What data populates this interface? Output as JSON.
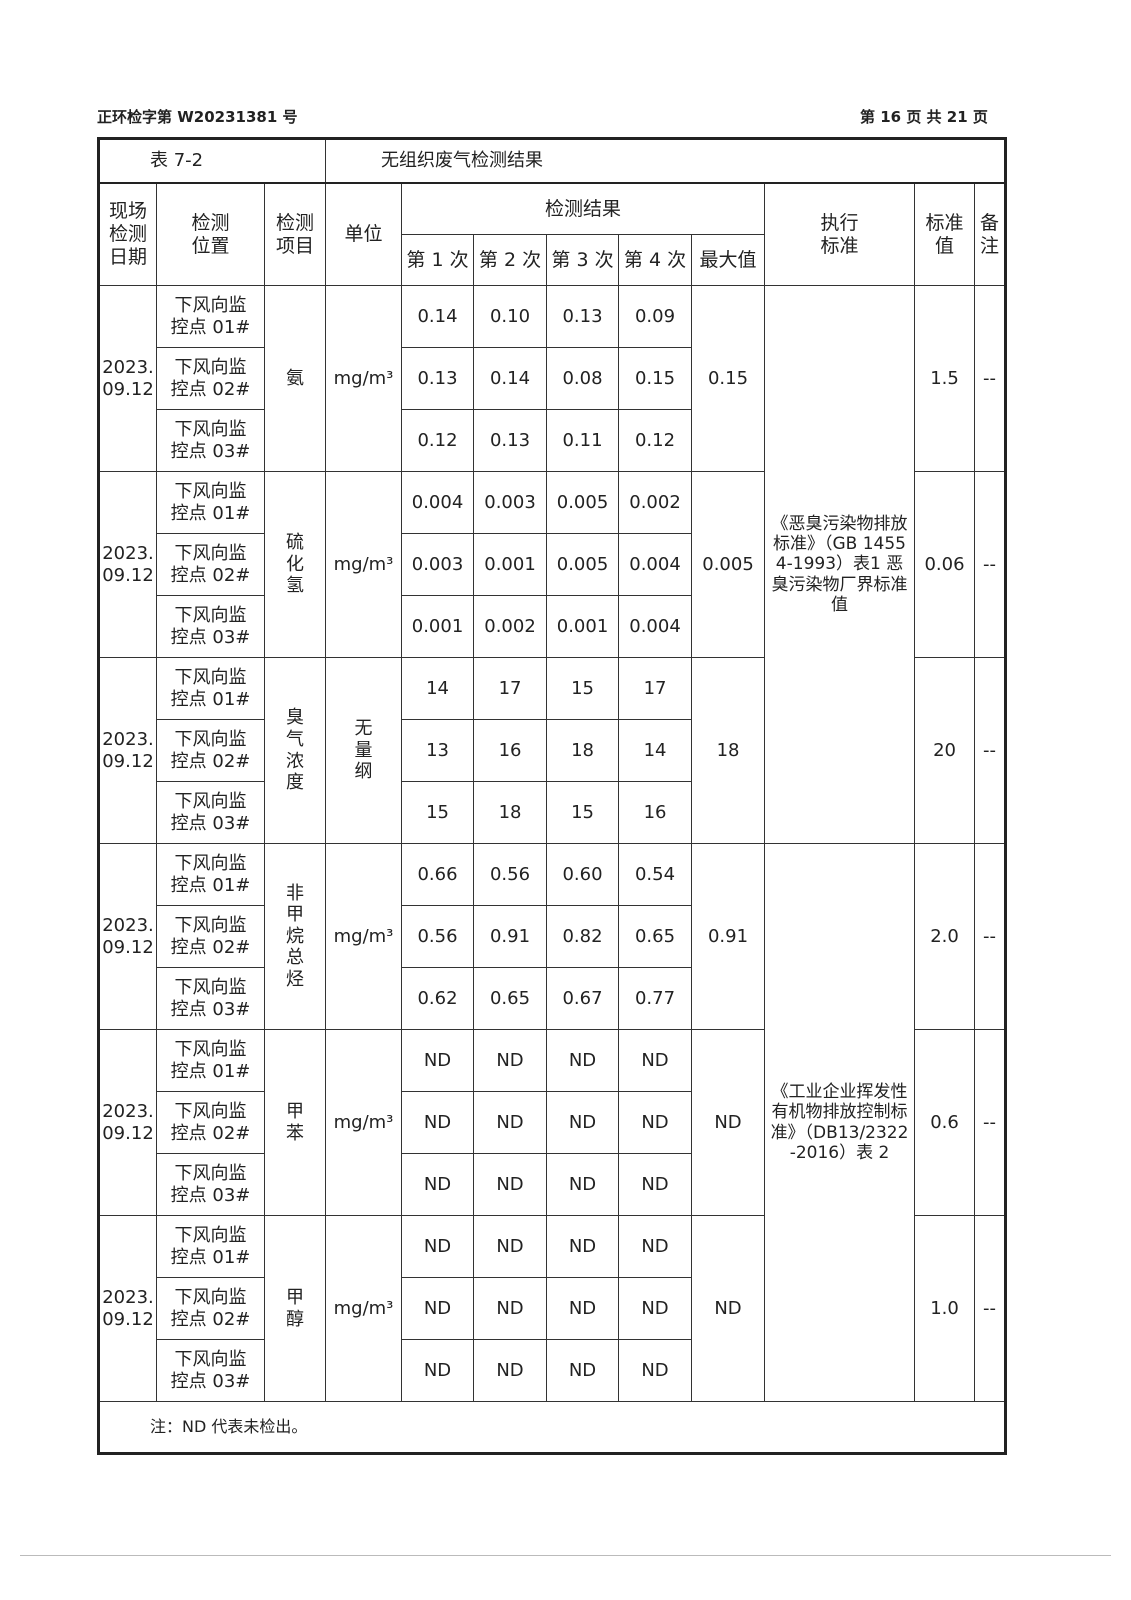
{
  "header": {
    "report_no": "正环检字第 W20231381 号",
    "page": "第 16 页 共 21 页"
  },
  "table": {
    "number": "表 7-2",
    "title": "无组织废气检测结果",
    "columns": {
      "date": "现场检测日期",
      "location": "检测位置",
      "item": "检测项目",
      "unit": "单位",
      "results": "检测结果",
      "run1": "第 1 次",
      "run2": "第 2 次",
      "run3": "第 3 次",
      "run4": "第 4 次",
      "max": "最大值",
      "standard": "执行标准",
      "limit": "标准值",
      "remark": "备注"
    },
    "standards": [
      "《恶臭污染物排放标准》（GB 14554-1993）表1 恶臭污染物厂界标准值",
      "《工业企业挥发性有机物排放控制标准》（DB13/2322-2016）表 2"
    ],
    "groups": [
      {
        "date": "2023.09.12",
        "item": "氨",
        "unit": "mg/m³",
        "max": "0.15",
        "limit": "1.5",
        "remark": "--",
        "rows": [
          {
            "loc": "下风向监控点 01#",
            "v": [
              "0.14",
              "0.10",
              "0.13",
              "0.09"
            ]
          },
          {
            "loc": "下风向监控点 02#",
            "v": [
              "0.13",
              "0.14",
              "0.08",
              "0.15"
            ]
          },
          {
            "loc": "下风向监控点 03#",
            "v": [
              "0.12",
              "0.13",
              "0.11",
              "0.12"
            ]
          }
        ]
      },
      {
        "date": "2023.09.12",
        "item": "硫化氢",
        "unit": "mg/m³",
        "max": "0.005",
        "limit": "0.06",
        "remark": "--",
        "rows": [
          {
            "loc": "下风向监控点 01#",
            "v": [
              "0.004",
              "0.003",
              "0.005",
              "0.002"
            ]
          },
          {
            "loc": "下风向监控点 02#",
            "v": [
              "0.003",
              "0.001",
              "0.005",
              "0.004"
            ]
          },
          {
            "loc": "下风向监控点 03#",
            "v": [
              "0.001",
              "0.002",
              "0.001",
              "0.004"
            ]
          }
        ]
      },
      {
        "date": "2023.09.12",
        "item": "臭气浓度",
        "unit": "无量纲",
        "max": "18",
        "limit": "20",
        "remark": "--",
        "rows": [
          {
            "loc": "下风向监控点 01#",
            "v": [
              "14",
              "17",
              "15",
              "17"
            ]
          },
          {
            "loc": "下风向监控点 02#",
            "v": [
              "13",
              "16",
              "18",
              "14"
            ]
          },
          {
            "loc": "下风向监控点 03#",
            "v": [
              "15",
              "18",
              "15",
              "16"
            ]
          }
        ]
      },
      {
        "date": "2023.09.12",
        "item": "非甲烷总烃",
        "unit": "mg/m³",
        "max": "0.91",
        "limit": "2.0",
        "remark": "--",
        "rows": [
          {
            "loc": "下风向监控点 01#",
            "v": [
              "0.66",
              "0.56",
              "0.60",
              "0.54"
            ]
          },
          {
            "loc": "下风向监控点 02#",
            "v": [
              "0.56",
              "0.91",
              "0.82",
              "0.65"
            ]
          },
          {
            "loc": "下风向监控点 03#",
            "v": [
              "0.62",
              "0.65",
              "0.67",
              "0.77"
            ]
          }
        ]
      },
      {
        "date": "2023.09.12",
        "item": "甲苯",
        "unit": "mg/m³",
        "max": "ND",
        "limit": "0.6",
        "remark": "--",
        "rows": [
          {
            "loc": "下风向监控点 01#",
            "v": [
              "ND",
              "ND",
              "ND",
              "ND"
            ]
          },
          {
            "loc": "下风向监控点 02#",
            "v": [
              "ND",
              "ND",
              "ND",
              "ND"
            ]
          },
          {
            "loc": "下风向监控点 03#",
            "v": [
              "ND",
              "ND",
              "ND",
              "ND"
            ]
          }
        ]
      },
      {
        "date": "2023.09.12",
        "item": "甲醇",
        "unit": "mg/m³",
        "max": "ND",
        "limit": "1.0",
        "remark": "--",
        "rows": [
          {
            "loc": "下风向监控点 01#",
            "v": [
              "ND",
              "ND",
              "ND",
              "ND"
            ]
          },
          {
            "loc": "下风向监控点 02#",
            "v": [
              "ND",
              "ND",
              "ND",
              "ND"
            ]
          },
          {
            "loc": "下风向监控点 03#",
            "v": [
              "ND",
              "ND",
              "ND",
              "ND"
            ]
          }
        ]
      }
    ],
    "note": "注：ND 代表未检出。"
  }
}
